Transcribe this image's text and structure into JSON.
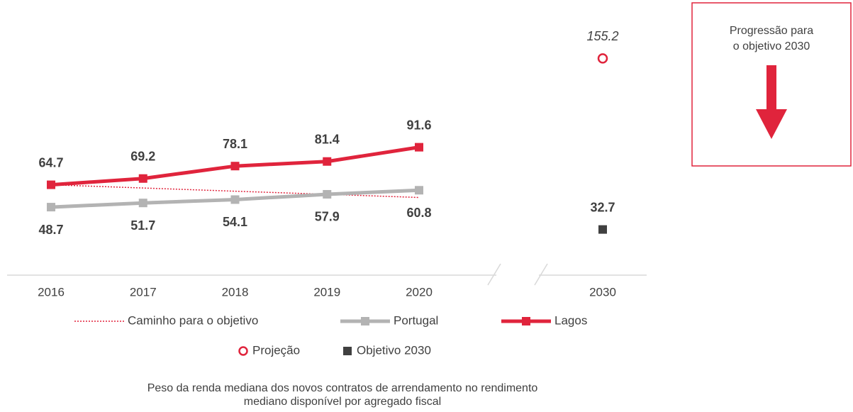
{
  "chart_data": {
    "type": "line",
    "categories": [
      "2016",
      "2017",
      "2018",
      "2019",
      "2020",
      "2030"
    ],
    "ylim": [
      0,
      195
    ],
    "series": [
      {
        "name": "Caminho para o objetivo",
        "color": "#e0243c",
        "line_style": "dotted",
        "marker": "none",
        "data_labels": false,
        "values": [
          64.7,
          62.4,
          60.1,
          57.9,
          55.6,
          null
        ]
      },
      {
        "name": "Portugal",
        "color": "#b3b3b3",
        "line_style": "solid",
        "marker": "square",
        "data_labels": true,
        "label_position": "below",
        "values": [
          48.7,
          51.7,
          54.1,
          57.9,
          60.8,
          null
        ]
      },
      {
        "name": "Lagos",
        "color": "#e0243c",
        "line_style": "solid",
        "marker": "square",
        "data_labels": true,
        "label_position": "above",
        "values": [
          64.7,
          69.2,
          78.1,
          81.4,
          91.6,
          null
        ]
      },
      {
        "name": "Projeção",
        "color": "#e0243c",
        "line_style": "none",
        "marker": "circle",
        "data_labels": true,
        "label_position": "above",
        "label_italic": true,
        "values": [
          null,
          null,
          null,
          null,
          null,
          155.2
        ]
      },
      {
        "name": "Objetivo 2030",
        "color": "#404040",
        "line_style": "none",
        "marker": "square",
        "data_labels": true,
        "label_position": "above",
        "values": [
          null,
          null,
          null,
          null,
          null,
          32.7
        ]
      }
    ],
    "annotation": [
      "Progressão para",
      "o objetivo 2030"
    ],
    "caption": [
      "Peso da renda mediana dos novos contratos de arrendamento no rendimento",
      "mediano disponível por agregado fiscal"
    ]
  }
}
